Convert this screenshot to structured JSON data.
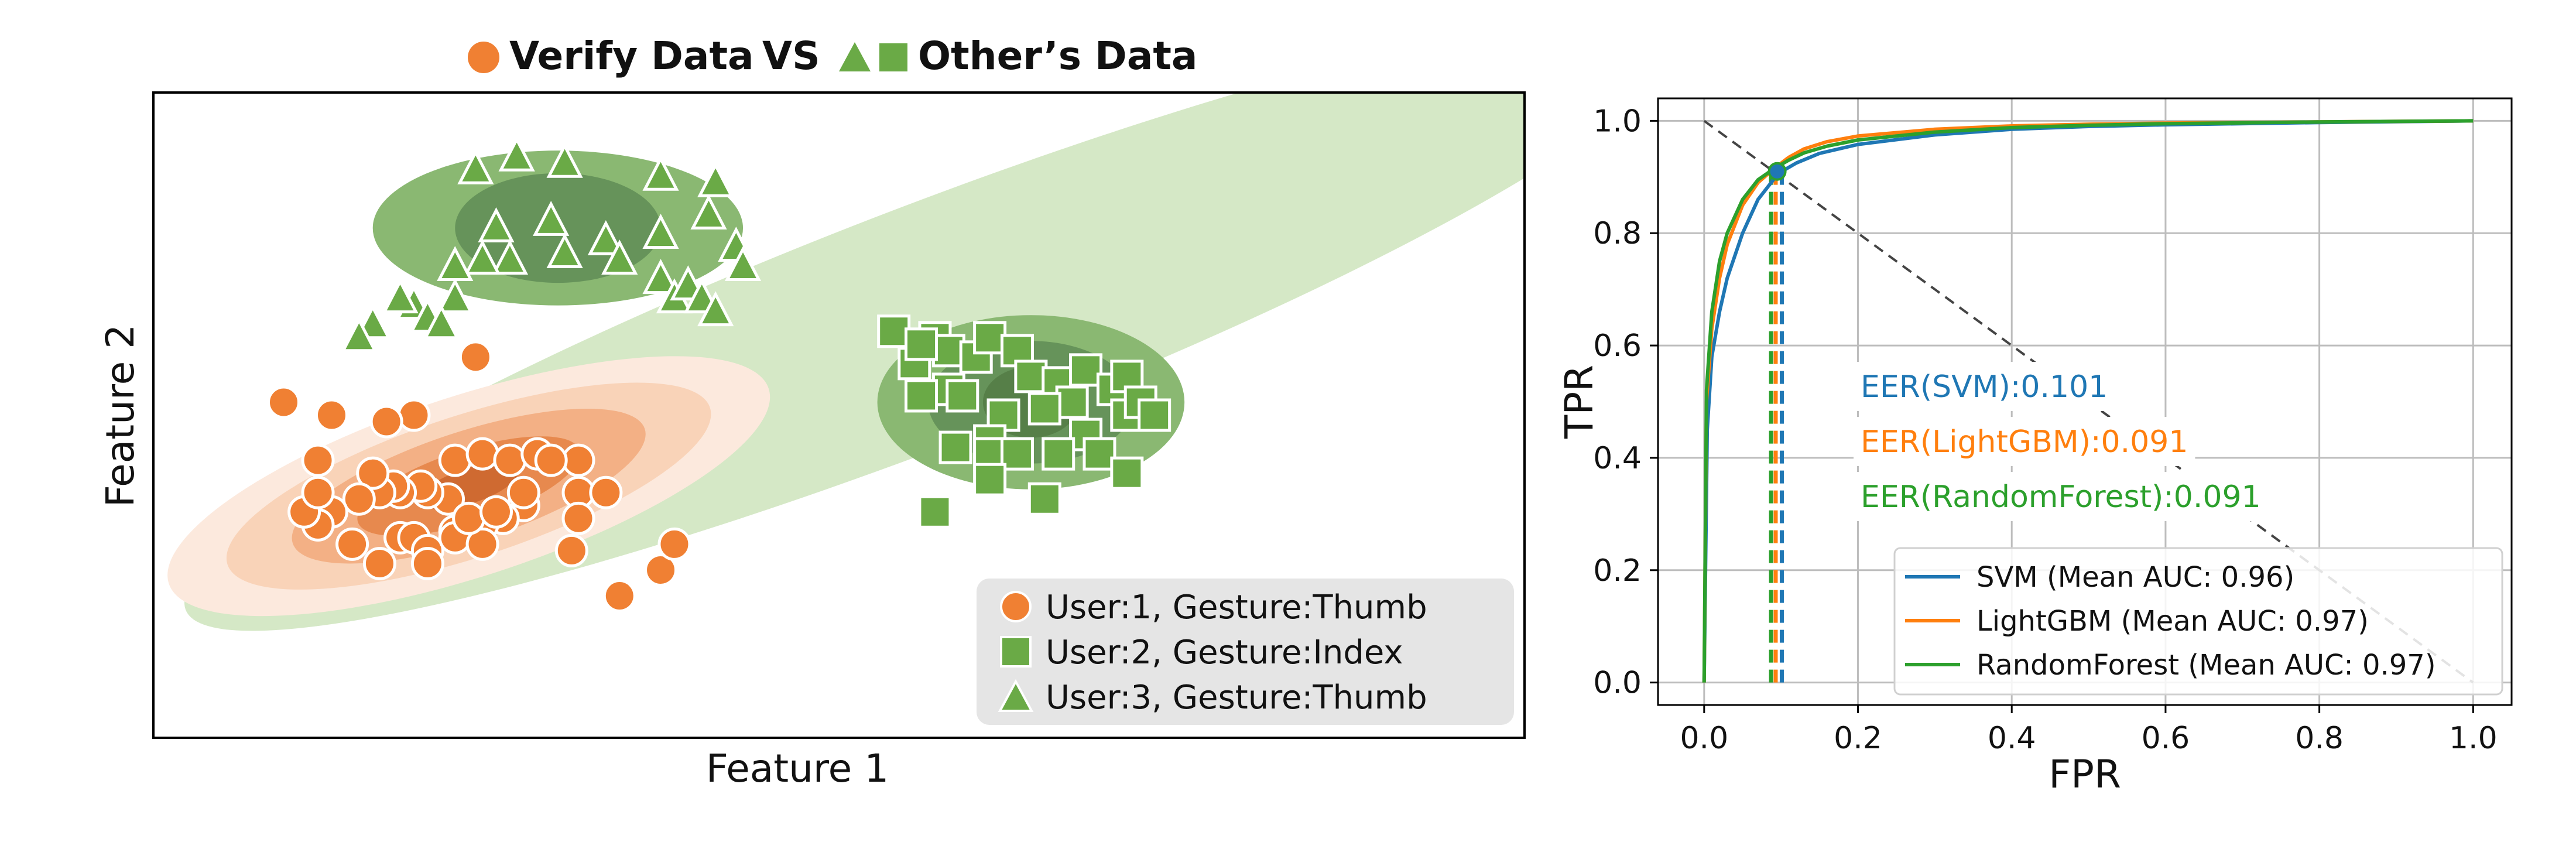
{
  "header": {
    "verify_label": "Verify Data",
    "vs_label": "VS",
    "others_label": "Other’s Data",
    "verify_color": "#F08033",
    "others_color": "#6AAA46"
  },
  "chart_data": [
    {
      "type": "scatter",
      "xlabel": "Feature 1",
      "ylabel": "Feature 2",
      "ticks_shown": false,
      "grid": false,
      "legend": {
        "placement": "bottom-right",
        "entries": [
          {
            "label": "User:1, Gesture:Thumb",
            "marker": "circle-icon",
            "color": "#F08033"
          },
          {
            "label": "User:2, Gesture:Index",
            "marker": "square-icon",
            "color": "#6AAA46"
          },
          {
            "label": "User:3, Gesture:Thumb",
            "marker": "triangle-icon",
            "color": "#6AAA46"
          }
        ]
      },
      "xlim": [
        0,
        100
      ],
      "ylim": [
        0,
        100
      ],
      "density_regions": [
        {
          "group": "User:1",
          "cx": 23,
          "cy": 39,
          "rx": [
            23,
            18.5,
            13.5,
            8.5,
            3.8
          ],
          "ry": [
            14,
            11,
            8.5,
            5.6,
            2.7
          ],
          "angle": 18,
          "colors": [
            "#FCE9DD",
            "#F9D3B8",
            "#F3B085",
            "#E7894E",
            "#CF6A31"
          ]
        },
        {
          "group": "User:3",
          "cx": 29.5,
          "cy": 79,
          "rx": [
            13.5,
            7.5
          ],
          "ry": [
            12,
            8.5
          ],
          "angle": 0,
          "colors": [
            "#8AB872",
            "#66935A"
          ]
        },
        {
          "group": "User:2",
          "cx": 64,
          "cy": 52,
          "rx": [
            11.2,
            7.5,
            3.5
          ],
          "ry": [
            13.5,
            9.5,
            5.5
          ],
          "angle": 0,
          "colors": [
            "#8AB872",
            "#66935A",
            "#567F48"
          ]
        },
        {
          "group": "Other",
          "cx": 56.5,
          "cy": 64,
          "rx": [
            58
          ],
          "ry": [
            18.5
          ],
          "angle": 21,
          "colors": [
            "#D5E8C6"
          ]
        }
      ],
      "series": [
        {
          "name": "User:1, Gesture:Thumb",
          "marker": "circle",
          "color": "#F08033",
          "points": [
            [
              9.5,
              52
            ],
            [
              23.5,
              59
            ],
            [
              19,
              50
            ],
            [
              17,
              49
            ],
            [
              13,
              50
            ],
            [
              12,
              43
            ],
            [
              22,
              43
            ],
            [
              24,
              44
            ],
            [
              26,
              43
            ],
            [
              31,
              43
            ],
            [
              28,
              44
            ],
            [
              31,
              38
            ],
            [
              31,
              34
            ],
            [
              30.5,
              29
            ],
            [
              27,
              36
            ],
            [
              25.5,
              34
            ],
            [
              24,
              33
            ],
            [
              22,
              32
            ],
            [
              21.5,
              37
            ],
            [
              20,
              38
            ],
            [
              19.5,
              39
            ],
            [
              18,
              38
            ],
            [
              17.5,
              39
            ],
            [
              16.5,
              38
            ],
            [
              16,
              41
            ],
            [
              15,
              37
            ],
            [
              13,
              35
            ],
            [
              12,
              33
            ],
            [
              11,
              35
            ],
            [
              12,
              38
            ],
            [
              14.5,
              30
            ],
            [
              16.5,
              27
            ],
            [
              18,
              31
            ],
            [
              19,
              31
            ],
            [
              20,
              29
            ],
            [
              20,
              27
            ],
            [
              22,
              31
            ],
            [
              24,
              30
            ],
            [
              23,
              34
            ],
            [
              25,
              35
            ],
            [
              27,
              38
            ],
            [
              33,
              38
            ],
            [
              29,
              43
            ],
            [
              34,
              22
            ],
            [
              37,
              26
            ],
            [
              38,
              30
            ]
          ]
        },
        {
          "name": "User:2, Gesture:Index",
          "marker": "square",
          "color": "#6AAA46",
          "points": [
            [
              54,
              63
            ],
            [
              57,
              62
            ],
            [
              58,
              60
            ],
            [
              60,
              59
            ],
            [
              58,
              54
            ],
            [
              56,
              53
            ],
            [
              55.5,
              58
            ],
            [
              56,
              61
            ],
            [
              61,
              62
            ],
            [
              63,
              60
            ],
            [
              64,
              56
            ],
            [
              66,
              55
            ],
            [
              67,
              52
            ],
            [
              68,
              57
            ],
            [
              70,
              54
            ],
            [
              71,
              56
            ],
            [
              71,
              50
            ],
            [
              72,
              52
            ],
            [
              73,
              50
            ],
            [
              68,
              47
            ],
            [
              65,
              51
            ],
            [
              62,
              50
            ],
            [
              61,
              46
            ],
            [
              59,
              53
            ],
            [
              58.5,
              45
            ],
            [
              61,
              44
            ],
            [
              63,
              44
            ],
            [
              66,
              44
            ],
            [
              69,
              44
            ],
            [
              71,
              41
            ],
            [
              65,
              37
            ],
            [
              61,
              40
            ],
            [
              57,
              35
            ]
          ]
        },
        {
          "name": "User:3, Gesture:Thumb",
          "marker": "triangle",
          "color": "#6AAA46",
          "points": [
            [
              23.5,
              88
            ],
            [
              26.5,
              90
            ],
            [
              30,
              89
            ],
            [
              37,
              87
            ],
            [
              41,
              86
            ],
            [
              40.5,
              81
            ],
            [
              42.5,
              76
            ],
            [
              43,
              73
            ],
            [
              37,
              78
            ],
            [
              37,
              71
            ],
            [
              33,
              77
            ],
            [
              34,
              74
            ],
            [
              30,
              75
            ],
            [
              29,
              80
            ],
            [
              26,
              74
            ],
            [
              25,
              79
            ],
            [
              24,
              74
            ],
            [
              22,
              73
            ],
            [
              22,
              68
            ],
            [
              19,
              67
            ],
            [
              18,
              68
            ],
            [
              20,
              65
            ],
            [
              16,
              64
            ],
            [
              15,
              62
            ],
            [
              21,
              64
            ],
            [
              38,
              68
            ],
            [
              39,
              70
            ],
            [
              40,
              68
            ],
            [
              41,
              66
            ]
          ]
        }
      ]
    },
    {
      "type": "line",
      "xlabel": "FPR",
      "ylabel": "TPR",
      "xlim": [
        -0.06,
        1.05
      ],
      "ylim": [
        -0.04,
        1.04
      ],
      "xticks": [
        "0.0",
        "0.2",
        "0.4",
        "0.6",
        "0.8",
        "1.0"
      ],
      "yticks": [
        "0.0",
        "0.2",
        "0.4",
        "0.6",
        "0.8",
        "1.0"
      ],
      "grid": true,
      "legend": {
        "placement": "bottom-right"
      },
      "series": [
        {
          "name": "SVM (Mean AUC: 0.96)",
          "color": "#1F77B4",
          "eer_label": "EER(SVM):0.101",
          "eer": 0.101,
          "x": [
            0,
            0.004,
            0.01,
            0.02,
            0.03,
            0.05,
            0.07,
            0.09,
            0.101,
            0.12,
            0.15,
            0.2,
            0.3,
            0.4,
            0.5,
            0.6,
            0.8,
            1.0
          ],
          "y": [
            0,
            0.45,
            0.58,
            0.66,
            0.72,
            0.8,
            0.86,
            0.895,
            0.91,
            0.925,
            0.942,
            0.958,
            0.975,
            0.985,
            0.99,
            0.993,
            0.997,
            1.0
          ]
        },
        {
          "name": "LightGBM (Mean AUC: 0.97)",
          "color": "#FF7F0E",
          "eer_label": "EER(LightGBM):0.091",
          "eer": 0.091,
          "x": [
            0,
            0.003,
            0.01,
            0.02,
            0.03,
            0.05,
            0.07,
            0.091,
            0.11,
            0.13,
            0.16,
            0.2,
            0.3,
            0.4,
            0.5,
            0.6,
            0.8,
            1.0
          ],
          "y": [
            0,
            0.5,
            0.63,
            0.72,
            0.78,
            0.85,
            0.89,
            0.915,
            0.935,
            0.95,
            0.963,
            0.973,
            0.985,
            0.991,
            0.994,
            0.996,
            0.998,
            1.0
          ]
        },
        {
          "name": "RandomForest (Mean AUC: 0.97)",
          "color": "#2CA02C",
          "eer_label": "EER(RandomForest):0.091",
          "eer": 0.091,
          "x": [
            0,
            0.003,
            0.01,
            0.02,
            0.03,
            0.05,
            0.07,
            0.091,
            0.11,
            0.13,
            0.16,
            0.2,
            0.3,
            0.4,
            0.5,
            0.6,
            0.8,
            1.0
          ],
          "y": [
            0,
            0.52,
            0.66,
            0.75,
            0.8,
            0.86,
            0.895,
            0.915,
            0.93,
            0.943,
            0.955,
            0.966,
            0.98,
            0.988,
            0.992,
            0.995,
            0.998,
            1.0
          ]
        }
      ],
      "reference_line": {
        "from": [
          0,
          1
        ],
        "to": [
          1,
          0
        ],
        "style": "dashed",
        "color": "#444444"
      },
      "eer_point": {
        "x": 0.095,
        "y": 0.91
      }
    }
  ]
}
